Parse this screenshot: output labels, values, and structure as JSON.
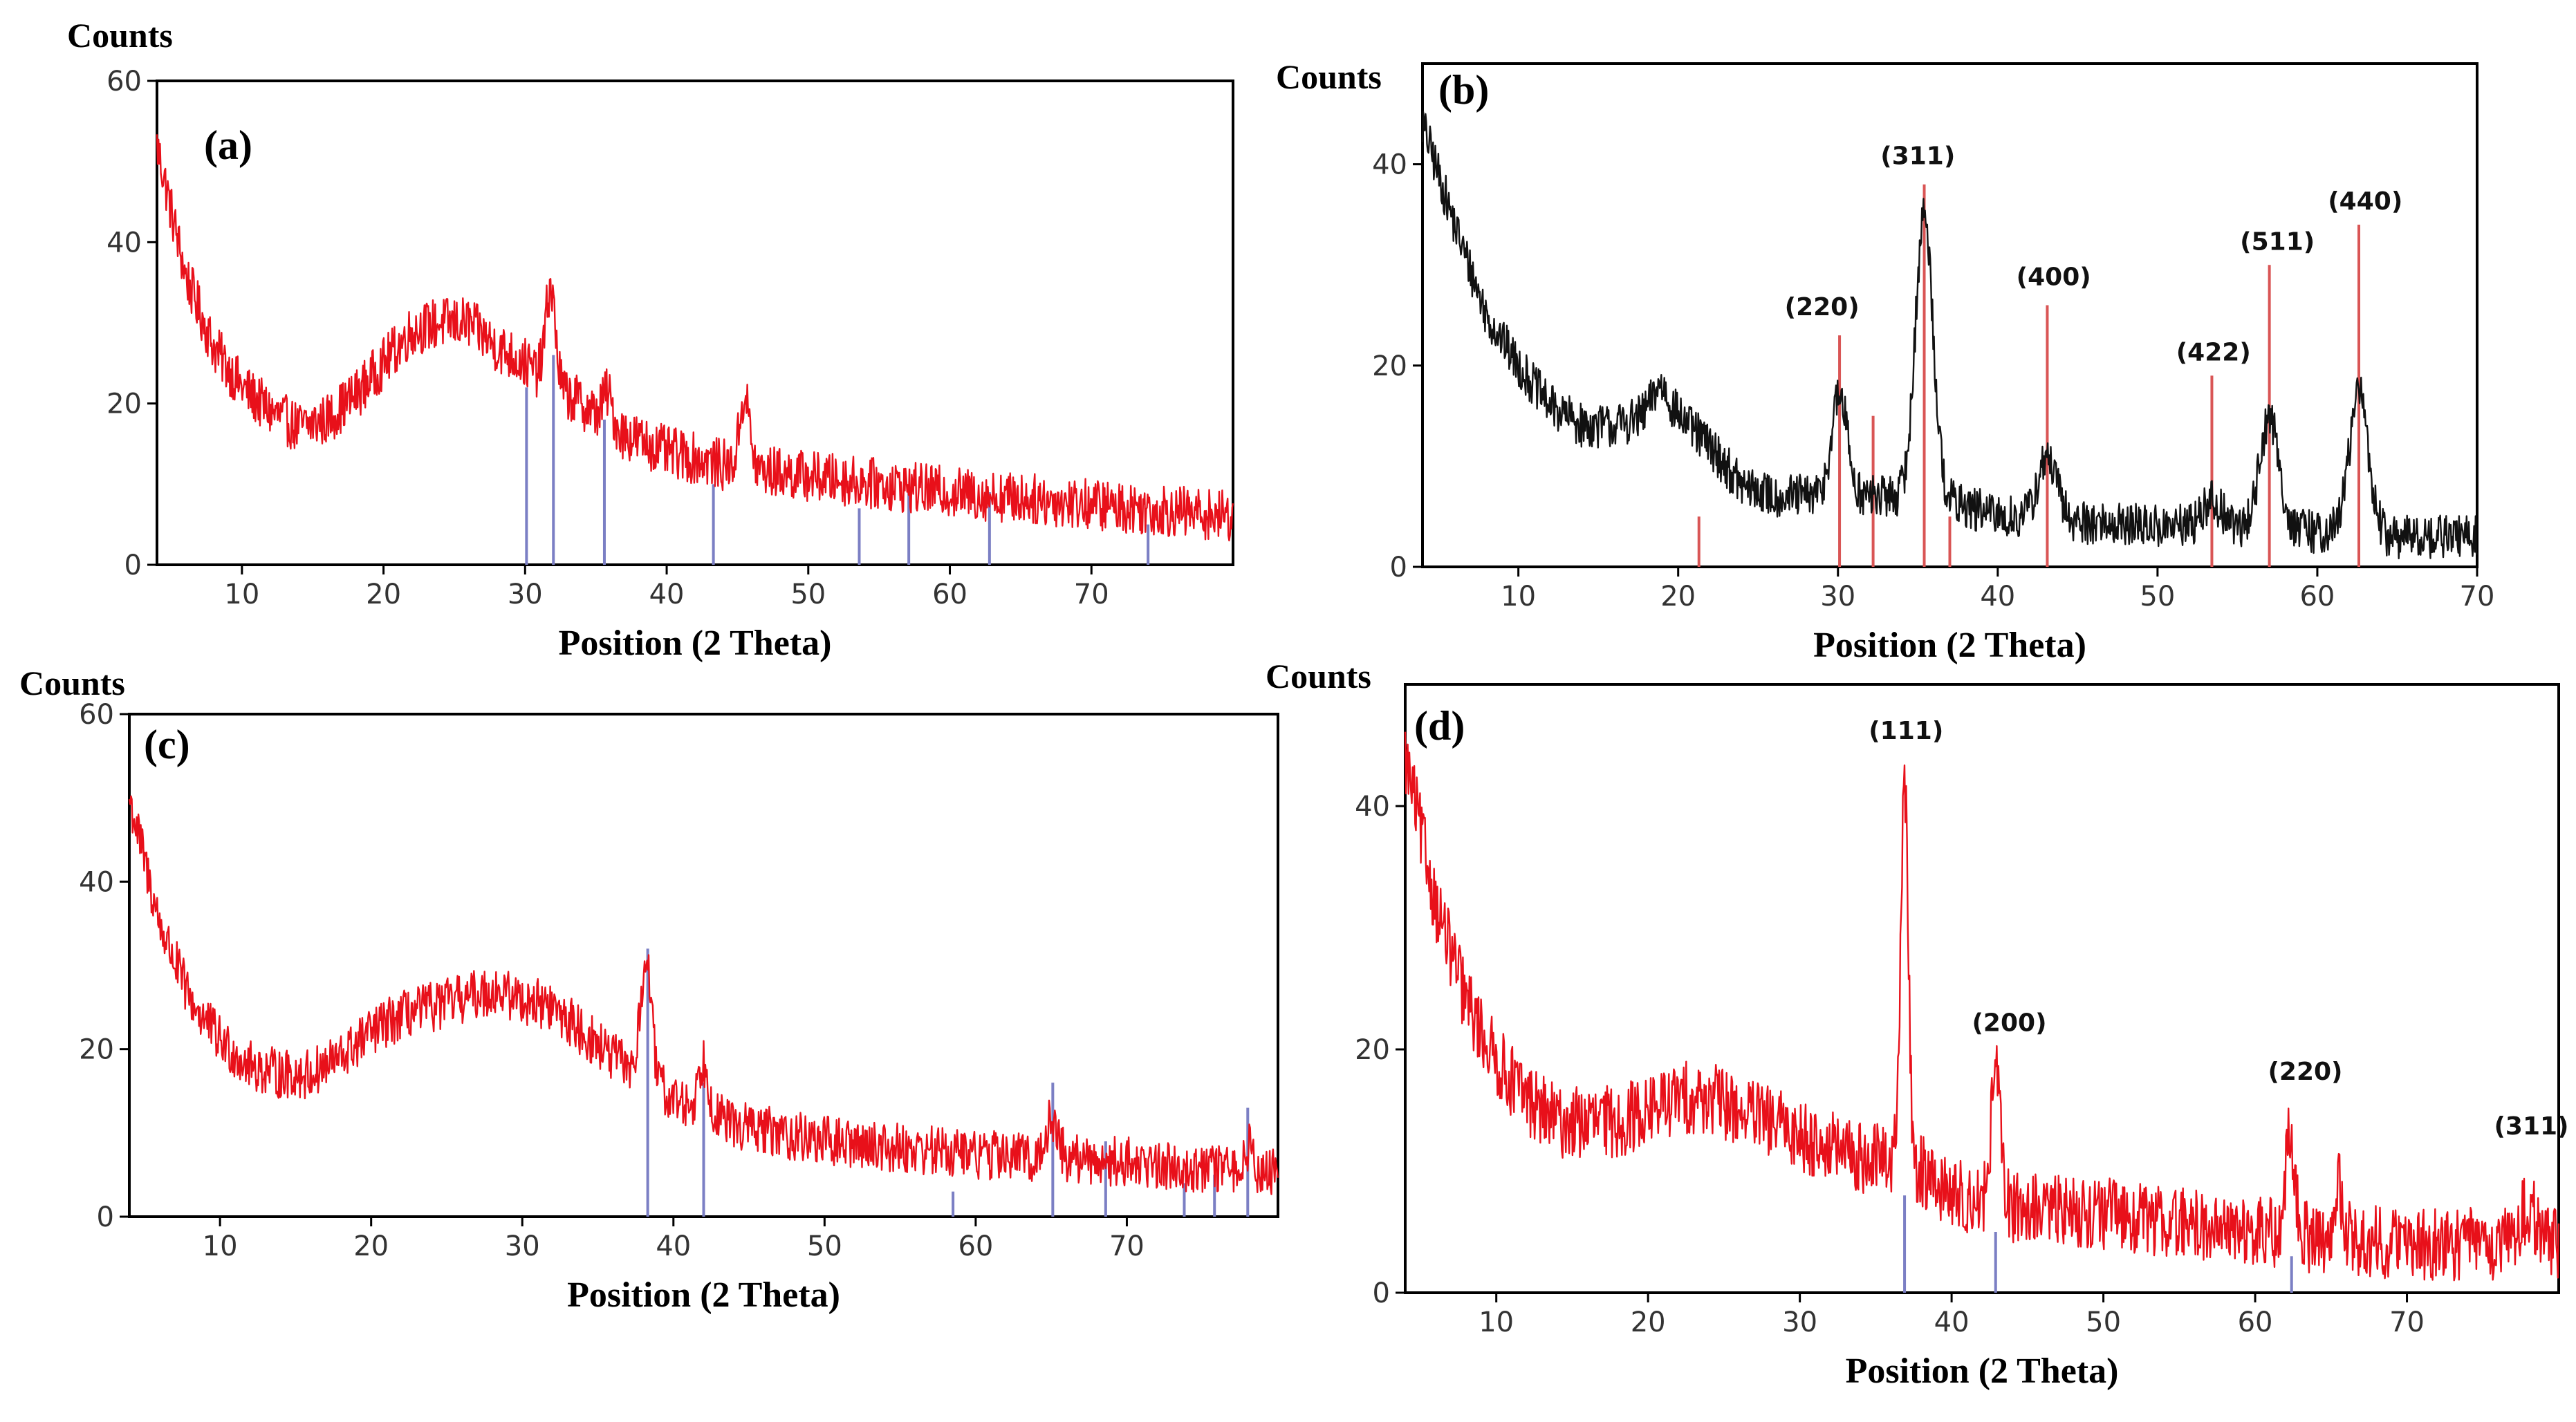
{
  "chart_data": [
    {
      "id": "a",
      "type": "line",
      "panel_label": "(a)",
      "ylabel": "Counts",
      "xlabel": "Position (2 Theta)",
      "xlim": [
        4,
        80
      ],
      "ylim": [
        0,
        60
      ],
      "xticks": [
        10,
        20,
        30,
        40,
        50,
        60,
        70
      ],
      "yticks": [
        0,
        20,
        40,
        60
      ],
      "line_color": "#e8101a",
      "ref_color": "#7b7fc4",
      "profile": [
        [
          4,
          52
        ],
        [
          6,
          36
        ],
        [
          8,
          27
        ],
        [
          10,
          22
        ],
        [
          12,
          19
        ],
        [
          14,
          17
        ],
        [
          16,
          18
        ],
        [
          18,
          21
        ],
        [
          20,
          25
        ],
        [
          22,
          29
        ],
        [
          24,
          30
        ],
        [
          26,
          30
        ],
        [
          28,
          27
        ],
        [
          30,
          25
        ],
        [
          32,
          22
        ],
        [
          34,
          20
        ],
        [
          36,
          17
        ],
        [
          40,
          14
        ],
        [
          45,
          12
        ],
        [
          50,
          11
        ],
        [
          60,
          9
        ],
        [
          70,
          7.5
        ],
        [
          80,
          6
        ]
      ],
      "peaks": [
        {
          "x": 31.8,
          "h": 12
        },
        {
          "x": 45.5,
          "h": 9
        },
        {
          "x": 35.8,
          "h": 4
        }
      ],
      "noise": 3.2,
      "reference_lines": [
        {
          "x": 30.1,
          "h": 22
        },
        {
          "x": 32.0,
          "h": 26
        },
        {
          "x": 35.6,
          "h": 18
        },
        {
          "x": 43.3,
          "h": 10
        },
        {
          "x": 53.6,
          "h": 7
        },
        {
          "x": 57.1,
          "h": 9
        },
        {
          "x": 62.8,
          "h": 9
        },
        {
          "x": 74.0,
          "h": 5
        }
      ],
      "hkl_labels": []
    },
    {
      "id": "b",
      "type": "line",
      "panel_label": "(b)",
      "ylabel": "Counts",
      "xlabel": "Position (2 Theta)",
      "xlim": [
        4,
        70
      ],
      "ylim": [
        0,
        50
      ],
      "xticks": [
        10,
        20,
        30,
        40,
        50,
        60,
        70
      ],
      "yticks": [
        0,
        20,
        40
      ],
      "line_color": "#111111",
      "ref_color": "#d95555",
      "profile": [
        [
          4,
          44
        ],
        [
          6,
          34
        ],
        [
          8,
          25
        ],
        [
          10,
          20
        ],
        [
          12,
          16
        ],
        [
          14,
          14
        ],
        [
          16,
          14
        ],
        [
          18,
          15
        ],
        [
          20,
          15
        ],
        [
          22,
          12
        ],
        [
          24,
          8
        ],
        [
          26,
          7
        ],
        [
          28,
          7
        ],
        [
          30,
          7
        ],
        [
          32,
          7
        ],
        [
          34,
          7
        ],
        [
          36,
          7
        ],
        [
          38,
          6
        ],
        [
          40,
          5
        ],
        [
          45,
          4.5
        ],
        [
          50,
          4
        ],
        [
          55,
          4
        ],
        [
          60,
          3.5
        ],
        [
          65,
          3
        ],
        [
          70,
          3
        ]
      ],
      "peaks": [
        {
          "x": 30.1,
          "h": 10,
          "w": 0.5
        },
        {
          "x": 35.4,
          "h": 28,
          "w": 0.55
        },
        {
          "x": 43.1,
          "h": 6,
          "w": 0.6
        },
        {
          "x": 53.4,
          "h": 2.5,
          "w": 0.6
        },
        {
          "x": 57.0,
          "h": 11,
          "w": 0.6
        },
        {
          "x": 62.6,
          "h": 14,
          "w": 0.6
        },
        {
          "x": 18.9,
          "h": 3,
          "w": 0.5
        }
      ],
      "noise": 2.2,
      "reference_lines": [
        {
          "x": 21.3,
          "h": 5
        },
        {
          "x": 30.1,
          "h": 23
        },
        {
          "x": 32.2,
          "h": 15
        },
        {
          "x": 35.4,
          "h": 38
        },
        {
          "x": 37.0,
          "h": 5
        },
        {
          "x": 43.1,
          "h": 26
        },
        {
          "x": 53.4,
          "h": 19
        },
        {
          "x": 57.0,
          "h": 30
        },
        {
          "x": 62.6,
          "h": 34
        }
      ],
      "hkl_labels": [
        {
          "text": "(220)",
          "x": 29.0,
          "y": 25
        },
        {
          "text": "(311)",
          "x": 35.0,
          "y": 40
        },
        {
          "text": "(400)",
          "x": 43.5,
          "y": 28
        },
        {
          "text": "(422)",
          "x": 53.5,
          "y": 20.5
        },
        {
          "text": "(511)",
          "x": 57.5,
          "y": 31.5
        },
        {
          "text": "(440)",
          "x": 63.0,
          "y": 35.5
        }
      ]
    },
    {
      "id": "c",
      "type": "line",
      "panel_label": "(c)",
      "ylabel": "Counts",
      "xlabel": "Position (2 Theta)",
      "xlim": [
        4,
        80
      ],
      "ylim": [
        0,
        60
      ],
      "xticks": [
        10,
        20,
        30,
        40,
        50,
        60,
        70
      ],
      "yticks": [
        0,
        20,
        40,
        60
      ],
      "line_color": "#e8101a",
      "ref_color": "#7b7fc4",
      "profile": [
        [
          4,
          50
        ],
        [
          6,
          35
        ],
        [
          8,
          26
        ],
        [
          10,
          21
        ],
        [
          12,
          18
        ],
        [
          14,
          17
        ],
        [
          16,
          17
        ],
        [
          18,
          19
        ],
        [
          20,
          22
        ],
        [
          22,
          24
        ],
        [
          24,
          25
        ],
        [
          26,
          26
        ],
        [
          28,
          27
        ],
        [
          30,
          26
        ],
        [
          32,
          25
        ],
        [
          34,
          22
        ],
        [
          36,
          19
        ],
        [
          38,
          17
        ],
        [
          40,
          14
        ],
        [
          44,
          11
        ],
        [
          50,
          9
        ],
        [
          60,
          7.5
        ],
        [
          70,
          6.5
        ],
        [
          80,
          5
        ]
      ],
      "peaks": [
        {
          "x": 38.2,
          "h": 14
        },
        {
          "x": 42.0,
          "h": 6
        },
        {
          "x": 65.1,
          "h": 5
        },
        {
          "x": 78.0,
          "h": 3
        }
      ],
      "noise": 3.0,
      "reference_lines": [
        {
          "x": 38.3,
          "h": 32
        },
        {
          "x": 42.0,
          "h": 16
        },
        {
          "x": 58.5,
          "h": 3
        },
        {
          "x": 65.1,
          "h": 16
        },
        {
          "x": 68.6,
          "h": 9
        },
        {
          "x": 73.8,
          "h": 4
        },
        {
          "x": 75.8,
          "h": 5
        },
        {
          "x": 78.0,
          "h": 13
        }
      ],
      "hkl_labels": []
    },
    {
      "id": "d",
      "type": "line",
      "panel_label": "(d)",
      "ylabel": "Counts",
      "xlabel": "Position (2 Theta)",
      "xlim": [
        4,
        80
      ],
      "ylim": [
        0,
        50
      ],
      "xticks": [
        10,
        20,
        30,
        40,
        50,
        60,
        70
      ],
      "yticks": [
        0,
        20,
        40
      ],
      "line_color": "#e8101a",
      "ref_color": "#7b7fc4",
      "profile": [
        [
          4,
          44
        ],
        [
          6,
          32
        ],
        [
          8,
          24
        ],
        [
          10,
          19
        ],
        [
          12,
          16
        ],
        [
          14,
          14
        ],
        [
          16,
          14
        ],
        [
          18,
          14
        ],
        [
          20,
          15
        ],
        [
          22,
          16
        ],
        [
          24,
          16
        ],
        [
          26,
          15
        ],
        [
          28,
          14
        ],
        [
          30,
          13
        ],
        [
          32,
          12
        ],
        [
          34,
          11
        ],
        [
          36,
          11
        ],
        [
          38,
          10
        ],
        [
          40,
          8
        ],
        [
          44,
          7
        ],
        [
          50,
          6.5
        ],
        [
          60,
          5
        ],
        [
          70,
          4
        ],
        [
          80,
          4
        ]
      ],
      "peaks": [
        {
          "x": 36.9,
          "h": 31,
          "w": 0.25
        },
        {
          "x": 42.9,
          "h": 11,
          "w": 0.3
        },
        {
          "x": 62.3,
          "h": 8,
          "w": 0.3
        },
        {
          "x": 65.5,
          "h": 4,
          "w": 0.3
        },
        {
          "x": 78.0,
          "h": 3,
          "w": 0.5
        }
      ],
      "noise": 3.0,
      "reference_lines": [
        {
          "x": 36.9,
          "h": 8
        },
        {
          "x": 42.9,
          "h": 5
        },
        {
          "x": 62.4,
          "h": 3
        }
      ],
      "hkl_labels": [
        {
          "text": "(111)",
          "x": 37.0,
          "y": 45.5
        },
        {
          "text": "(200)",
          "x": 43.8,
          "y": 21.5
        },
        {
          "text": "(220)",
          "x": 63.3,
          "y": 17.5
        },
        {
          "text": "(311)",
          "x": 78.2,
          "y": 13
        }
      ]
    }
  ]
}
